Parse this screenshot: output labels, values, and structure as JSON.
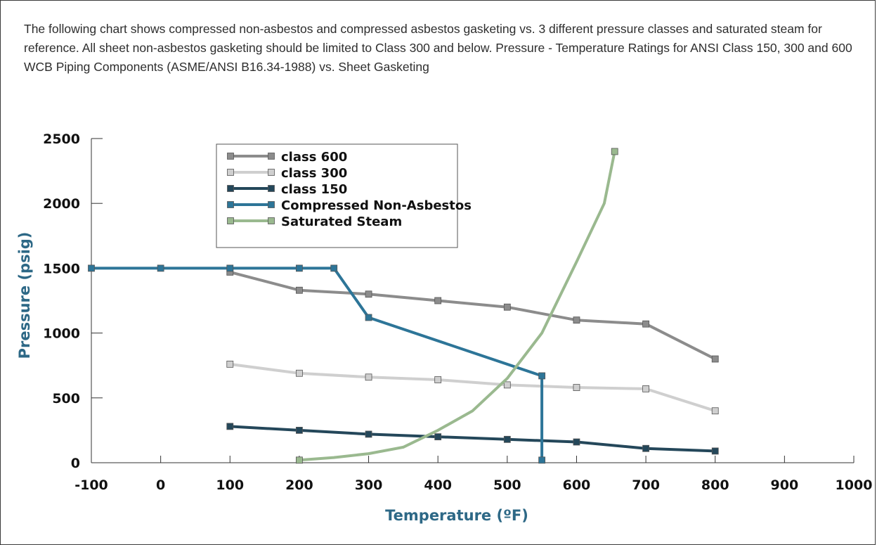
{
  "intro_text": "The following chart shows compressed non-asbestos and compressed asbestos gasketing vs. 3 different pressure classes and saturated steam for reference.  All sheet non-asbestos gasketing should be limited to Class 300 and below. Pressure - Temperature Ratings for ANSI Class 150, 300 and 600 WCB Piping Components (ASME/ANSI B16.34-1988) vs. Sheet Gasketing",
  "chart_data": {
    "type": "line",
    "title": "",
    "xlabel": "Temperature (ºF)",
    "ylabel": "Pressure (psig)",
    "xlim": [
      -100,
      1000
    ],
    "ylim": [
      0,
      2500
    ],
    "x_ticks": [
      "-100",
      "0",
      "100",
      "200",
      "300",
      "400",
      "500",
      "600",
      "700",
      "800",
      "900",
      "1000"
    ],
    "y_ticks": [
      "0",
      "500",
      "1000",
      "1500",
      "2000",
      "2500"
    ],
    "grid": false,
    "legend_position": "top-left",
    "series": [
      {
        "name": "class 600",
        "color": "#8c8c8c",
        "marker": "square",
        "points": [
          [
            100,
            1470
          ],
          [
            200,
            1330
          ],
          [
            300,
            1300
          ],
          [
            400,
            1250
          ],
          [
            500,
            1200
          ],
          [
            600,
            1100
          ],
          [
            700,
            1070
          ],
          [
            800,
            800
          ]
        ]
      },
      {
        "name": "class 300",
        "color": "#cfcfcf",
        "marker": "square",
        "points": [
          [
            100,
            760
          ],
          [
            200,
            690
          ],
          [
            300,
            660
          ],
          [
            400,
            640
          ],
          [
            500,
            600
          ],
          [
            600,
            580
          ],
          [
            700,
            570
          ],
          [
            800,
            400
          ]
        ]
      },
      {
        "name": "class 150",
        "color": "#24475a",
        "marker": "square",
        "points": [
          [
            100,
            280
          ],
          [
            200,
            250
          ],
          [
            300,
            220
          ],
          [
            400,
            200
          ],
          [
            500,
            180
          ],
          [
            600,
            160
          ],
          [
            700,
            110
          ],
          [
            800,
            90
          ]
        ]
      },
      {
        "name": "Compressed Non-Asbestos",
        "color": "#2d7598",
        "marker": "square",
        "points": [
          [
            -100,
            1500
          ],
          [
            0,
            1500
          ],
          [
            100,
            1500
          ],
          [
            200,
            1500
          ],
          [
            250,
            1500
          ],
          [
            300,
            1120
          ],
          [
            550,
            670
          ],
          [
            550,
            20
          ]
        ]
      },
      {
        "name": "Saturated Steam",
        "color": "#9ab98f",
        "marker": "square",
        "markers_at": "ends",
        "points": [
          [
            200,
            20
          ],
          [
            250,
            40
          ],
          [
            300,
            70
          ],
          [
            350,
            120
          ],
          [
            400,
            250
          ],
          [
            450,
            400
          ],
          [
            500,
            650
          ],
          [
            550,
            1000
          ],
          [
            600,
            1550
          ],
          [
            640,
            2000
          ],
          [
            655,
            2400
          ]
        ]
      }
    ]
  }
}
